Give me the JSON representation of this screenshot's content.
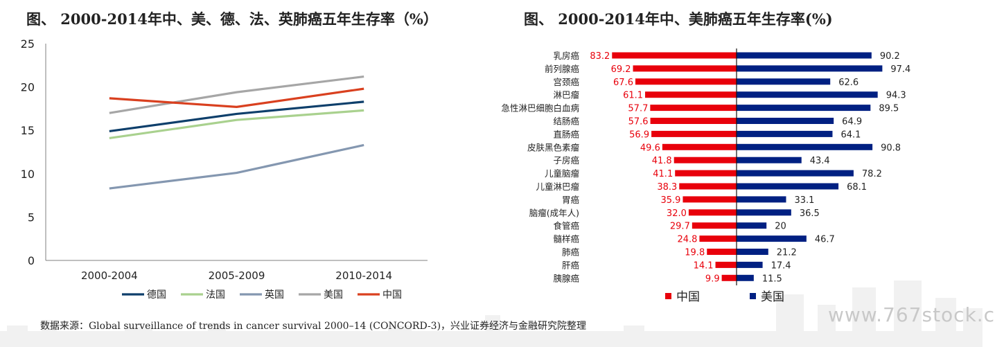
{
  "left_title": "图、 2000-2014年中、美、德、法、英肺癌五年生存率（%）",
  "right_title": "图、 2000-2014年中、美肺癌五年生存率(%)",
  "source": "数据来源：Global surveillance of trends in cancer survival 2000–14 (CONCORD-3)，兴业证券经济与金融研究院整理",
  "watermark": "www.767stock.c",
  "chart_data": [
    {
      "type": "line",
      "categories": [
        "2000-2004",
        "2005-2009",
        "2010-2014"
      ],
      "ylim": [
        0,
        25
      ],
      "yticks": [
        0,
        5,
        10,
        15,
        20,
        25
      ],
      "grid": false,
      "legend_position": "bottom",
      "series": [
        {
          "name": "德国",
          "values": [
            14.9,
            16.9,
            18.3
          ],
          "color": "#0e3f6b"
        },
        {
          "name": "法国",
          "values": [
            14.1,
            16.2,
            17.3
          ],
          "color": "#a9d18e"
        },
        {
          "name": "英国",
          "values": [
            8.3,
            10.1,
            13.3
          ],
          "color": "#8497b0"
        },
        {
          "name": "美国",
          "values": [
            17.0,
            19.4,
            21.2
          ],
          "color": "#a6a6a6"
        },
        {
          "name": "中国",
          "values": [
            18.7,
            17.7,
            19.8
          ],
          "color": "#d9401f"
        }
      ]
    },
    {
      "type": "bar",
      "orientation": "horizontal-diverging",
      "legend_position": "bottom",
      "categories": [
        "乳房癌",
        "前列腺癌",
        "宫颈癌",
        "淋巴瘤",
        "急性淋巴细胞白血病",
        "结肠癌",
        "直肠癌",
        "皮肤黑色素瘤",
        "子房癌",
        "儿童脑瘤",
        "儿童淋巴瘤",
        "胃癌",
        "脑瘤(成年人)",
        "食管癌",
        "髓样癌",
        "肺癌",
        "肝癌",
        "胰腺癌"
      ],
      "series": [
        {
          "name": "中国",
          "color": "#e8000b",
          "values": [
            83.2,
            69.2,
            67.6,
            61.1,
            57.7,
            57.6,
            56.9,
            49.6,
            41.8,
            41.1,
            38.3,
            35.9,
            32.0,
            29.7,
            24.8,
            19.8,
            14.1,
            9.9
          ],
          "labels": [
            "83.2",
            "69.2",
            "67.6",
            "61.1",
            "57.7",
            "57.6",
            "56.9",
            "49.6",
            "41.8",
            "41.1",
            "38.3",
            "35.9",
            "32.0",
            "29.7",
            "24.8",
            "19.8",
            "14.1",
            "9.9"
          ]
        },
        {
          "name": "美国",
          "color": "#002082",
          "values": [
            90.2,
            97.4,
            62.6,
            94.3,
            89.5,
            64.9,
            64.1,
            90.8,
            43.4,
            78.2,
            68.1,
            33.1,
            36.5,
            20,
            46.7,
            21.2,
            17.4,
            11.5
          ],
          "labels": [
            "90.2",
            "97.4",
            "62.6",
            "94.3",
            "89.5",
            "64.9",
            "64.1",
            "90.8",
            "43.4",
            "78.2",
            "68.1",
            "33.1",
            "36.5",
            "20",
            "46.7",
            "21.2",
            "17.4",
            "11.5"
          ]
        }
      ]
    }
  ]
}
